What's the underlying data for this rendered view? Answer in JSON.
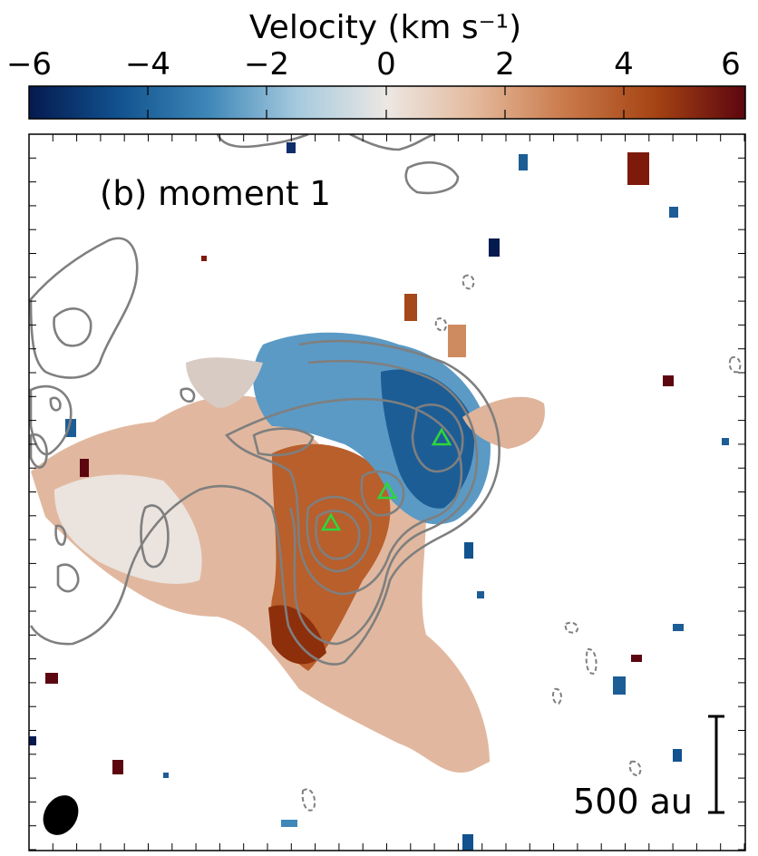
{
  "colorbar": {
    "label": "Velocity (km s⁻¹)",
    "min": -6,
    "max": 6,
    "ticks": [
      "−6",
      "−4",
      "−2",
      "0",
      "2",
      "4",
      "6"
    ],
    "colormap": [
      "#051a4f",
      "#11528f",
      "#3e87b8",
      "#a6cade",
      "#ece7e3",
      "#e3b89a",
      "#c9794a",
      "#a54313",
      "#5c0610"
    ]
  },
  "panel": {
    "title": "(b) moment 1",
    "scalebar_label": "500 au"
  },
  "markers": {
    "shape": "triangle",
    "color": "#2fd63a",
    "count": 3
  },
  "contours": {
    "color": "#7f7f7f"
  },
  "beam": {
    "color": "#000000"
  }
}
